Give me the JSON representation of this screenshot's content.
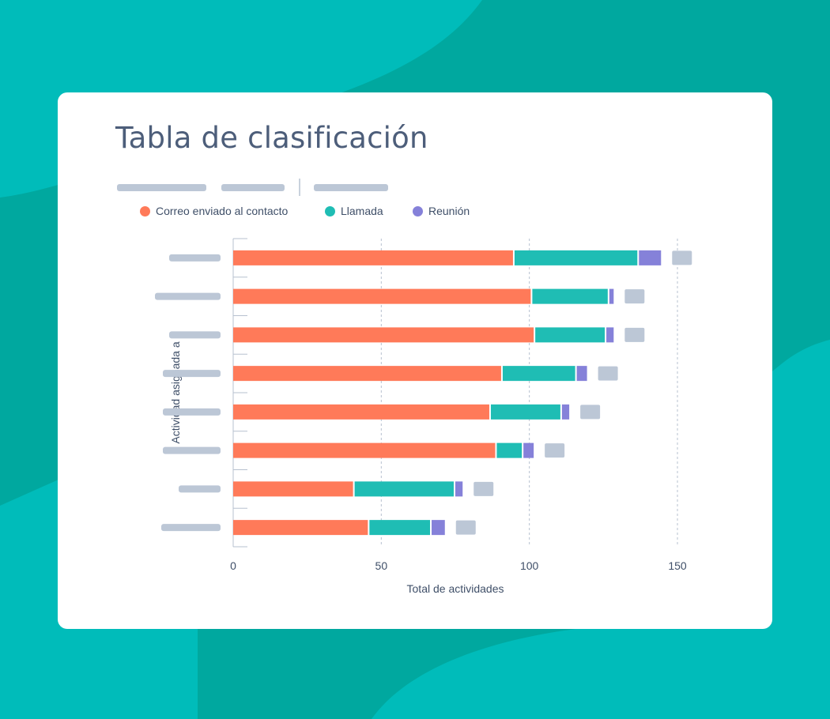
{
  "colors": {
    "background": "#00a89f",
    "background_wave": "#00bcba",
    "card": "#ffffff",
    "placeholder": "#bcc7d6",
    "axis": "#b7c1cf",
    "text": "#3f4f68",
    "title": "#4d5e7a"
  },
  "title": "Tabla de clasificación",
  "filters_count": 3,
  "chart_data": {
    "type": "bar",
    "orientation": "horizontal",
    "stacked": true,
    "title": "Tabla de clasificación",
    "xlabel": "Total de actividades",
    "ylabel": "Actividad asignada a",
    "xlim": [
      0,
      150
    ],
    "xticks": [
      "0",
      "50",
      "100",
      "150"
    ],
    "grid": "vertical dashed lines",
    "legend_position": "top-left",
    "category_labels": "placeholder bars (no text)",
    "categories_count": 8,
    "series": [
      {
        "name": "Correo enviado al contacto",
        "color": "#ff7a59",
        "values": [
          95,
          101,
          102,
          91,
          87,
          89,
          41,
          46
        ]
      },
      {
        "name": "Llamada",
        "color": "#1fbdb4",
        "values": [
          42,
          26,
          24,
          25,
          24,
          9,
          34,
          21
        ]
      },
      {
        "name": "Reunión",
        "color": "#8581d9",
        "values": [
          8,
          2,
          3,
          4,
          3,
          4,
          3,
          5
        ]
      }
    ],
    "total_labels": "placeholder bars (no text)"
  }
}
